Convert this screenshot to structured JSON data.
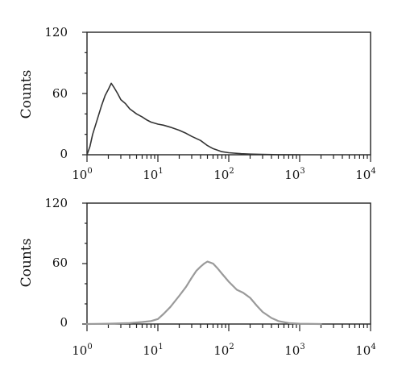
{
  "chart_data": [
    {
      "type": "line",
      "ylabel": "Counts",
      "xscale": "log",
      "xlim": [
        1,
        10000
      ],
      "ylim": [
        0,
        120
      ],
      "yticks": [
        "0",
        "60",
        "120"
      ],
      "xticks": [
        {
          "base": "10",
          "exp": "0"
        },
        {
          "base": "10",
          "exp": "1"
        },
        {
          "base": "10",
          "exp": "2"
        },
        {
          "base": "10",
          "exp": "3"
        },
        {
          "base": "10",
          "exp": "4"
        }
      ],
      "grid": false,
      "color": "#333333",
      "series": [
        {
          "x": [
            1.0,
            1.1,
            1.2,
            1.4,
            1.6,
            1.8,
            2.0,
            2.2,
            2.4,
            2.7,
            3.0,
            3.5,
            4,
            5,
            6,
            7,
            8,
            10,
            12,
            15,
            20,
            25,
            30,
            40,
            50,
            60,
            80,
            100,
            150,
            200,
            300,
            500,
            1000
          ],
          "y": [
            0,
            8,
            20,
            35,
            48,
            58,
            64,
            70,
            66,
            60,
            54,
            50,
            45,
            40,
            37,
            34,
            32,
            30,
            29,
            27,
            24,
            21,
            18,
            14,
            9,
            6,
            3,
            2,
            1,
            0.6,
            0.3,
            0.1,
            0
          ]
        }
      ]
    },
    {
      "type": "line",
      "ylabel": "Counts",
      "xscale": "log",
      "xlim": [
        1,
        10000
      ],
      "ylim": [
        0,
        120
      ],
      "yticks": [
        "0",
        "60",
        "120"
      ],
      "xticks": [
        {
          "base": "10",
          "exp": "0"
        },
        {
          "base": "10",
          "exp": "1"
        },
        {
          "base": "10",
          "exp": "2"
        },
        {
          "base": "10",
          "exp": "3"
        },
        {
          "base": "10",
          "exp": "4"
        }
      ],
      "grid": false,
      "color": "#9a9a9a",
      "series": [
        {
          "x": [
            1.0,
            2,
            4,
            6,
            8,
            10,
            12,
            15,
            20,
            25,
            30,
            35,
            40,
            45,
            50,
            55,
            60,
            70,
            80,
            100,
            130,
            160,
            200,
            250,
            300,
            400,
            500,
            700,
            1000,
            2000
          ],
          "y": [
            0,
            0.3,
            1,
            2,
            3,
            5,
            10,
            17,
            28,
            37,
            46,
            53,
            57,
            60,
            62,
            61,
            60,
            55,
            50,
            42,
            34,
            31,
            26,
            18,
            12,
            6,
            3,
            1,
            0.3,
            0
          ]
        }
      ]
    }
  ]
}
